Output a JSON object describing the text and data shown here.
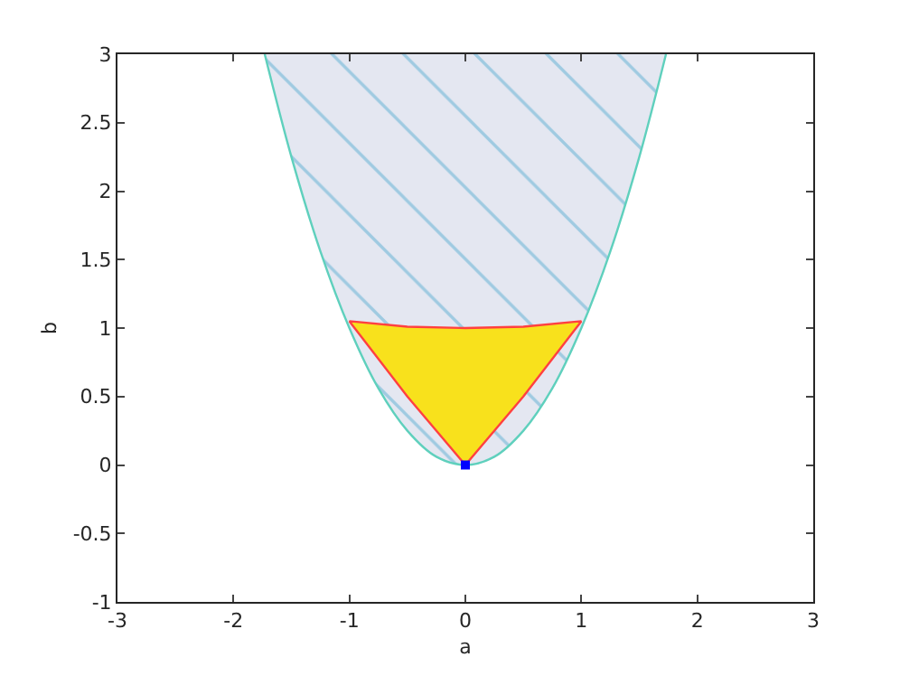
{
  "chart_data": {
    "type": "area",
    "xlabel": "a",
    "ylabel": "b",
    "xlim": [
      -3,
      3
    ],
    "ylim": [
      -1,
      3
    ],
    "xticks": [
      -3,
      -2,
      -1,
      0,
      1,
      2,
      3
    ],
    "yticks": [
      -1,
      -0.5,
      0,
      0.5,
      1,
      1.5,
      2,
      2.5,
      3
    ],
    "series": [
      {
        "color": "#e4e7f1",
        "x": [
          -1.73,
          -1.5,
          -1.25,
          -1,
          -0.75,
          -0.5,
          -0.25,
          0,
          0.25,
          0.5,
          0.75,
          1,
          1.25,
          1.5,
          1.73
        ],
        "values": [
          3,
          2.25,
          1.56,
          1,
          0.56,
          0.25,
          0.06,
          0,
          0.06,
          0.25,
          0.56,
          1,
          1.56,
          2.25,
          3
        ]
      },
      {
        "color": "#f8e11c",
        "x": [
          0,
          -0.5,
          -1,
          -0.5,
          0,
          0.5,
          1,
          0.5,
          0
        ],
        "values": [
          0,
          0.5,
          1.05,
          1.01,
          1,
          1.01,
          1.05,
          0.5,
          0
        ]
      },
      {
        "type": "scatter",
        "marker": "square",
        "color": "#0000ff",
        "x": [
          0
        ],
        "values": [
          0
        ]
      }
    ]
  }
}
